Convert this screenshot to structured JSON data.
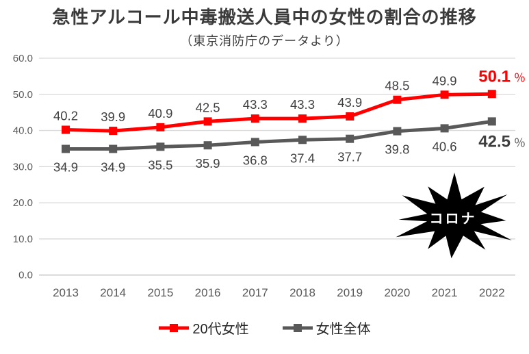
{
  "title": "急性アルコール中毒搬送人員中の女性の割合の推移",
  "subtitle": "（東京消防庁のデータより）",
  "legend": {
    "items": [
      {
        "label": "20代女性",
        "color": "#FF0000"
      },
      {
        "label": "女性全体",
        "color": "#595959"
      }
    ]
  },
  "chart_data": {
    "type": "line",
    "title": "急性アルコール中毒搬送人員中の女性の割合の推移",
    "subtitle": "（東京消防庁のデータより）",
    "categories": [
      "2013",
      "2014",
      "2015",
      "2016",
      "2017",
      "2018",
      "2019",
      "2020",
      "2021",
      "2022"
    ],
    "series": [
      {
        "name": "20代女性",
        "color": "#FF0000",
        "values": [
          40.2,
          39.9,
          40.9,
          42.5,
          43.3,
          43.3,
          43.9,
          48.5,
          49.9,
          50.1
        ],
        "data_label_position": "above",
        "end_label": {
          "value": "50.1",
          "suffix": "％",
          "value_color": "#FF0000",
          "suffix_color": "#FF0000"
        }
      },
      {
        "name": "女性全体",
        "color": "#595959",
        "values": [
          34.9,
          34.9,
          35.5,
          35.9,
          36.8,
          37.4,
          37.7,
          39.8,
          40.6,
          42.5
        ],
        "data_label_position": "below",
        "end_label": {
          "value": "42.5",
          "suffix": "％",
          "value_color": "#3f3f3f",
          "suffix_color": "#595959"
        }
      }
    ],
    "ylim": [
      0,
      60
    ],
    "ytick_step": 10,
    "ytick_labels": [
      "0.0",
      "10.0",
      "20.0",
      "30.0",
      "40.0",
      "50.0",
      "60.0"
    ],
    "grid": true,
    "legend_position": "bottom",
    "annotation": {
      "text": "コロナ",
      "shape": "starburst",
      "fill": "#000000",
      "text_color": "#ffffff"
    },
    "colors": {
      "gridline": "#d9d9d9",
      "axis_line": "#bfbfbf",
      "tick_label": "#595959",
      "data_label": "#404040"
    }
  }
}
